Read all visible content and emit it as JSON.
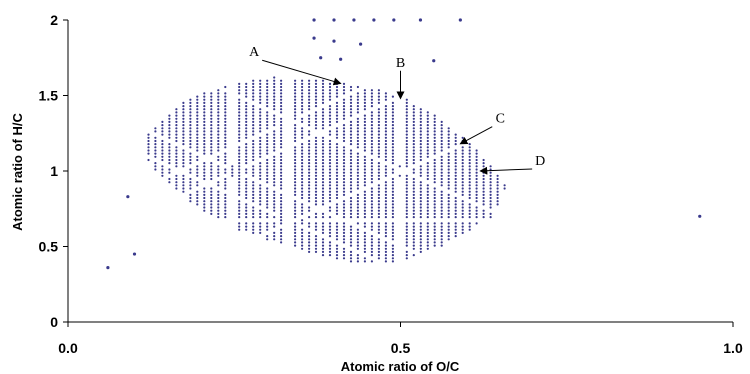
{
  "chart_data": {
    "type": "scatter",
    "title": "",
    "xlabel": "Atomic ratio of O/C",
    "ylabel": "Atomic ratio of H/C",
    "xlim": [
      0.0,
      1.0
    ],
    "ylim": [
      0,
      2
    ],
    "x_ticks": [
      0.0,
      0.5,
      1.0
    ],
    "x_tick_labels": [
      "0.0",
      "0.5",
      "1.0"
    ],
    "y_ticks": [
      0,
      0.5,
      1,
      1.5,
      2
    ],
    "y_tick_labels": [
      "0",
      "0.5",
      "1",
      "1.5",
      "2"
    ],
    "grid": false,
    "marker_color": "#3a3a8c",
    "cluster": {
      "description_points_shown_as_dense_grid": true,
      "polygon": [
        [
          0.12,
          1.25
        ],
        [
          0.17,
          1.45
        ],
        [
          0.24,
          1.58
        ],
        [
          0.31,
          1.62
        ],
        [
          0.38,
          1.6
        ],
        [
          0.45,
          1.56
        ],
        [
          0.5,
          1.5
        ],
        [
          0.56,
          1.35
        ],
        [
          0.62,
          1.12
        ],
        [
          0.66,
          0.9
        ],
        [
          0.64,
          0.7
        ],
        [
          0.56,
          0.5
        ],
        [
          0.5,
          0.4
        ],
        [
          0.42,
          0.4
        ],
        [
          0.33,
          0.5
        ],
        [
          0.25,
          0.62
        ],
        [
          0.18,
          0.8
        ],
        [
          0.13,
          1.0
        ],
        [
          0.11,
          1.15
        ]
      ]
    },
    "sparse_points": [
      [
        0.06,
        0.36
      ],
      [
        0.09,
        0.83
      ],
      [
        0.1,
        0.45
      ],
      [
        0.95,
        0.7
      ],
      [
        0.37,
        1.88
      ],
      [
        0.4,
        1.86
      ],
      [
        0.44,
        1.84
      ],
      [
        0.38,
        1.75
      ],
      [
        0.41,
        1.74
      ],
      [
        0.55,
        1.73
      ],
      [
        0.37,
        2.0
      ],
      [
        0.4,
        2.0
      ],
      [
        0.43,
        2.0
      ],
      [
        0.46,
        2.0
      ],
      [
        0.49,
        2.0
      ],
      [
        0.53,
        2.0
      ],
      [
        0.59,
        2.0
      ]
    ],
    "annotations": [
      {
        "label": "A",
        "text_at": [
          0.28,
          1.76
        ],
        "arrow_to": [
          0.41,
          1.58
        ]
      },
      {
        "label": "B",
        "text_at": [
          0.5,
          1.69
        ],
        "arrow_to": [
          0.5,
          1.48
        ]
      },
      {
        "label": "C",
        "text_at": [
          0.65,
          1.32
        ],
        "arrow_to": [
          0.59,
          1.18
        ]
      },
      {
        "label": "D",
        "text_at": [
          0.71,
          1.04
        ],
        "arrow_to": [
          0.62,
          1.0
        ]
      }
    ]
  }
}
